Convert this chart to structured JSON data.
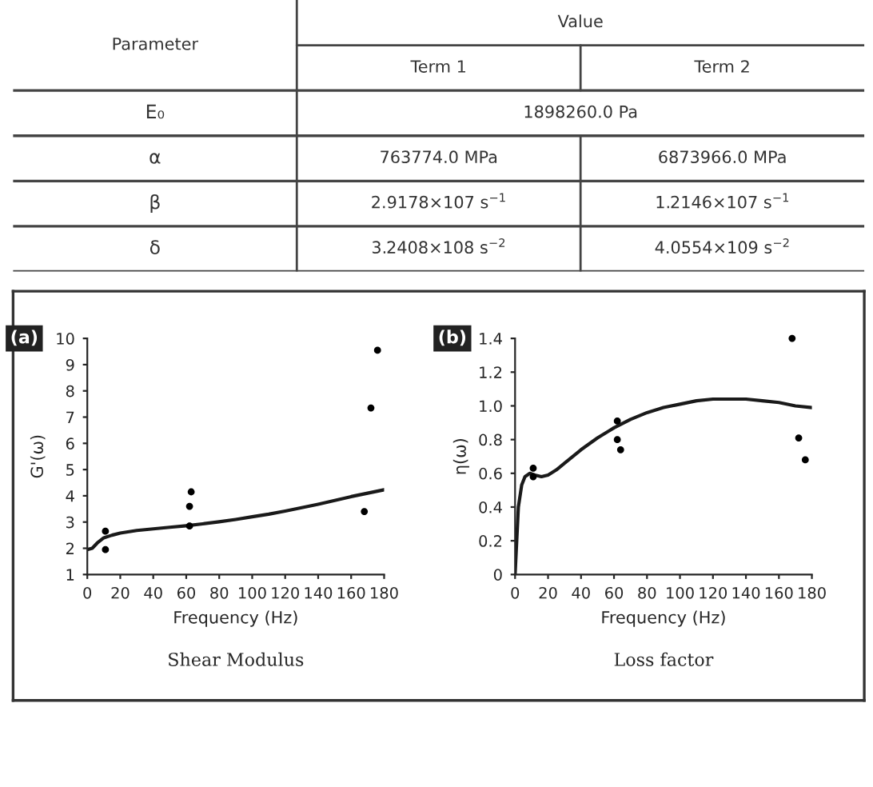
{
  "chart_data": [
    {
      "type": "other",
      "ylabel": "Parameter",
      "title": "Value",
      "categories": [
        "Term 1",
        "Term 2"
      ],
      "y_categories": [
        "E₀",
        "α",
        "β",
        "δ"
      ],
      "cell_labels": [
        [
          "1898260.0 Pa",
          null
        ],
        [
          "763774.0 MPa",
          "6873966.0 MPa"
        ],
        [
          "2.9178×107 s$^{−1}$",
          "1.2146×107 s$^{−1}$"
        ],
        [
          "3.2408×108 s$^{−2}$",
          "4.0554×109 s$^{−2}$"
        ]
      ]
    },
    {
      "type": "scatter",
      "xlabel": "Frequency (Hz)",
      "ylabel": "G'(ω)",
      "annotations": [
        "(a)",
        "Shear Modulus"
      ],
      "xlim": [
        0,
        180
      ],
      "ylim": [
        1,
        10
      ],
      "xticks": [
        0,
        20,
        40,
        60,
        80,
        100,
        120,
        140,
        160,
        180
      ],
      "yticks": [
        1,
        2,
        3,
        4,
        5,
        6,
        7,
        8,
        9,
        10
      ],
      "grid": false,
      "legend": false,
      "series": [
        {
          "type": "scatter",
          "marker": "circle",
          "color": "#000000",
          "x": [
            11,
            11,
            62,
            62,
            63,
            168,
            172,
            176
          ],
          "values": [
            2.65,
            1.95,
            2.85,
            3.6,
            4.15,
            3.4,
            7.35,
            9.55
          ]
        },
        {
          "type": "line",
          "color": "#1a1a1a",
          "x": [
            0,
            3,
            6,
            10,
            15,
            20,
            30,
            40,
            50,
            60,
            70,
            80,
            90,
            100,
            110,
            120,
            130,
            140,
            150,
            160,
            170,
            180
          ],
          "values": [
            1.95,
            2.0,
            2.2,
            2.4,
            2.5,
            2.58,
            2.68,
            2.74,
            2.8,
            2.86,
            2.93,
            3.01,
            3.1,
            3.2,
            3.3,
            3.42,
            3.55,
            3.68,
            3.82,
            3.97,
            4.1,
            4.23
          ]
        }
      ]
    },
    {
      "type": "scatter",
      "xlabel": "Frequency (Hz)",
      "ylabel": "η(ω)",
      "annotations": [
        "(b)",
        "Loss factor"
      ],
      "xlim": [
        0,
        180
      ],
      "ylim": [
        0,
        1.4
      ],
      "xticks": [
        0,
        20,
        40,
        60,
        80,
        100,
        120,
        140,
        160,
        180
      ],
      "yticks": [
        0,
        0.2,
        0.4,
        0.6,
        0.8,
        {
          "value": 1.0,
          "label": "1.0"
        },
        1.2,
        1.4
      ],
      "grid": false,
      "legend": false,
      "series": [
        {
          "type": "scatter",
          "marker": "circle",
          "color": "#000000",
          "x": [
            11,
            11,
            62,
            62,
            64,
            168,
            172,
            176
          ],
          "values": [
            0.63,
            0.58,
            0.91,
            0.8,
            0.74,
            1.4,
            0.81,
            0.68
          ]
        },
        {
          "type": "line",
          "color": "#1a1a1a",
          "x": [
            0,
            1,
            2,
            4,
            6,
            9,
            12,
            16,
            20,
            25,
            30,
            40,
            50,
            60,
            70,
            80,
            90,
            100,
            110,
            120,
            130,
            140,
            150,
            160,
            170,
            180
          ],
          "values": [
            0,
            0.2,
            0.4,
            0.53,
            0.58,
            0.6,
            0.59,
            0.58,
            0.59,
            0.62,
            0.66,
            0.74,
            0.81,
            0.87,
            0.92,
            0.96,
            0.99,
            1.01,
            1.03,
            1.04,
            1.04,
            1.04,
            1.03,
            1.02,
            1.0,
            0.99
          ]
        }
      ]
    }
  ]
}
